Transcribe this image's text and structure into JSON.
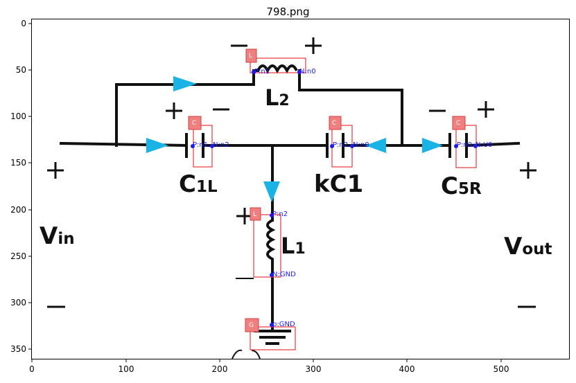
{
  "figure": {
    "title": "798.png",
    "x_ticks": [
      "0",
      "100",
      "200",
      "300",
      "400",
      "500"
    ],
    "y_ticks": [
      "0",
      "50",
      "100",
      "150",
      "200",
      "250",
      "300",
      "350"
    ]
  },
  "labels": {
    "l2": "L2",
    "c1l": "C1L",
    "kc1": "kC1",
    "c5r": "C5R",
    "l1": "L1",
    "vin": "Vin",
    "vout": "Vout"
  },
  "badges": {
    "l2": "L",
    "c1l": "C",
    "kc1": "C",
    "c5r": "C",
    "l1": "L",
    "gnd": "G"
  },
  "pins": {
    "l2_p": "P:n1",
    "l2_n": "N:n0",
    "c1l_p": "P:n1",
    "c1l_n": "N:n2",
    "kc1_p": "P:n2",
    "kc1_n": "N:n0",
    "c5r_p": "P:n0",
    "c5r_n": "N:U0",
    "l1_p": "P:n2",
    "l1_n": "N:GND",
    "gnd_p": "p:GND"
  },
  "colors": {
    "box": "#e8343a",
    "badge": "#f08080",
    "pin": "#1a1aff",
    "arrow": "#1ab3e6"
  }
}
